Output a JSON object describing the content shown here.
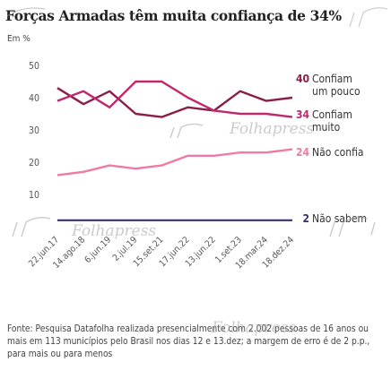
{
  "header": {
    "title": "Forças Armadas têm muita confiança de 34%",
    "subtitle": "Em %"
  },
  "footer": {
    "source": "Fonte: Pesquisa Datafolha realizada presencialmente com 2.002 pessoas de 16 anos ou mais em 113 municípios pelo Brasil nos dias 12 e 13.dez; a margem de erro é de 2 p.p., para mais ou para menos"
  },
  "watermark": {
    "text": "Folhapress"
  },
  "colors": {
    "confiam_um_pouco": "#8a1e4a",
    "confiam_muito": "#c0286e",
    "nao_confia": "#f07aa6",
    "nao_sabem": "#3a2d7a",
    "axis_text": "#555555"
  },
  "chart_data": {
    "type": "line",
    "categories": [
      "22.jun.17",
      "14.ago.18",
      "6.jun.19",
      "2.jul.19",
      "15.set.21",
      "17.jun.22",
      "13.jun.22",
      "1.set.23",
      "18.mar.24",
      "18.dez.24"
    ],
    "ylim": [
      0,
      50
    ],
    "yticks": [
      10,
      20,
      30,
      40,
      50
    ],
    "series": [
      {
        "name": "Confiam um pouco",
        "label_lines": [
          "Confiam",
          "um pouco"
        ],
        "end_value_label": "40",
        "color": "#8a1e4a",
        "values": [
          43,
          38,
          42,
          35,
          34,
          37,
          36,
          42,
          39,
          40
        ]
      },
      {
        "name": "Confiam muito",
        "label_lines": [
          "Confiam",
          "muito"
        ],
        "end_value_label": "34",
        "color": "#c0286e",
        "values": [
          39,
          42,
          37,
          45,
          45,
          40,
          36,
          35,
          35,
          34
        ]
      },
      {
        "name": "Não confia",
        "label_lines": [
          "Não confia"
        ],
        "end_value_label": "24",
        "color": "#f07aa6",
        "values": [
          16,
          17,
          19,
          18,
          19,
          22,
          22,
          23,
          23,
          24
        ]
      },
      {
        "name": "Não sabem",
        "label_lines": [
          "Não sabem"
        ],
        "end_value_label": "2",
        "color": "#3a2d7a",
        "values": [
          2,
          2,
          2,
          2,
          2,
          2,
          2,
          2,
          2,
          2
        ]
      }
    ]
  }
}
